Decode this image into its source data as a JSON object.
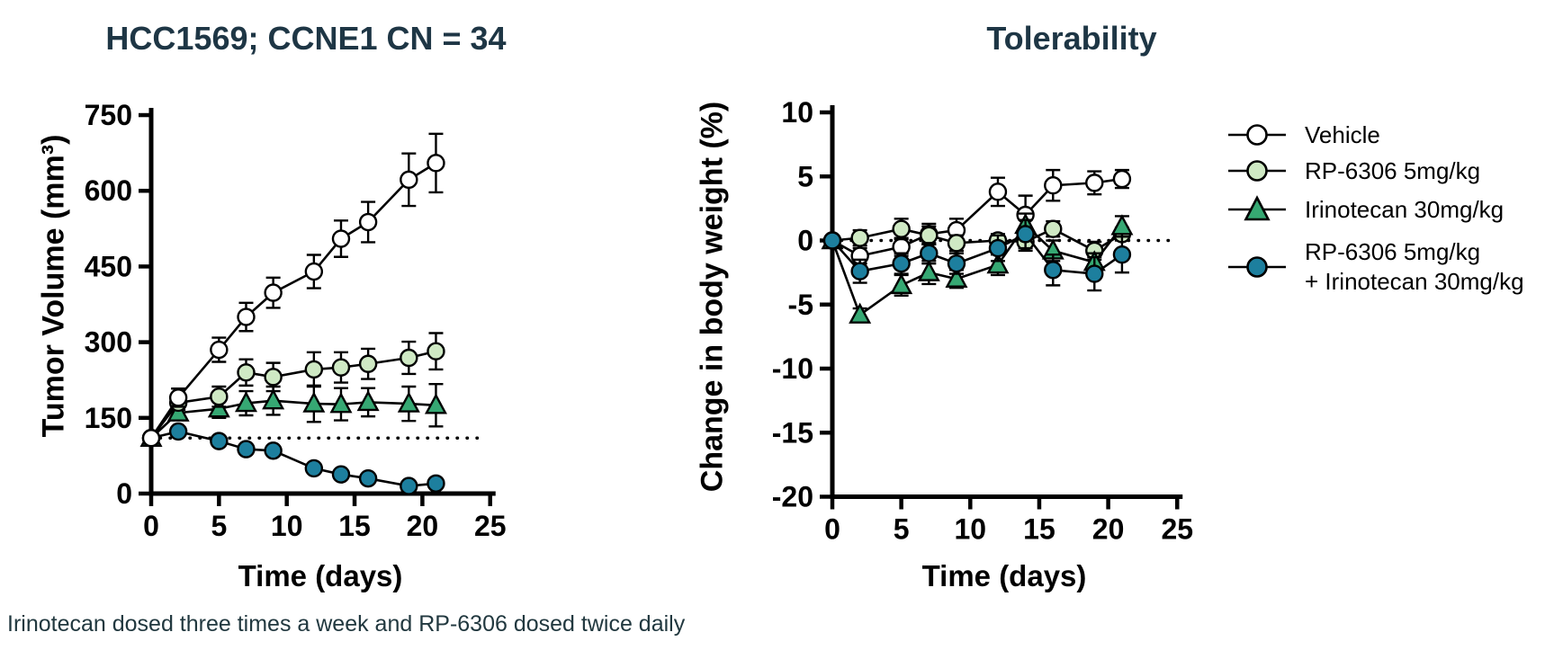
{
  "caption": "Irinotecan dosed three times a week and RP-6306 dosed twice daily",
  "colors": {
    "title_text": "#1e3645",
    "caption_text": "#21383f",
    "axis": "#000000",
    "vehicle_fill": "#ffffff",
    "rp6306_fill": "#cfe9c4",
    "irinotecan_fill": "#36a873",
    "combo_fill": "#1d7f9e"
  },
  "legend": {
    "items": [
      {
        "label": "Vehicle",
        "marker": "circle",
        "fill": "#ffffff"
      },
      {
        "label": "RP-6306 5mg/kg",
        "marker": "circle",
        "fill": "#cfe9c4"
      },
      {
        "label": "Irinotecan 30mg/kg",
        "marker": "triangle",
        "fill": "#36a873"
      },
      {
        "label": "RP-6306 5mg/kg\n+ Irinotecan 30mg/kg",
        "marker": "circle",
        "fill": "#1d7f9e"
      }
    ]
  },
  "chart_data": [
    {
      "type": "line",
      "title": "HCC1569; CCNE1 CN = 34",
      "xlabel": "Time (days)",
      "ylabel": "Tumor Volume (mm³)",
      "xlim": [
        0,
        25
      ],
      "ylim": [
        0,
        750
      ],
      "xticks": [
        0,
        5,
        10,
        15,
        20,
        25
      ],
      "yticks": [
        0,
        150,
        300,
        450,
        600,
        750
      ],
      "x": [
        0,
        2,
        5,
        7,
        9,
        12,
        14,
        16,
        19,
        21
      ],
      "baseline": {
        "value": 110,
        "style": "dotted",
        "x_start": 0,
        "x_end": 24.3
      },
      "series": [
        {
          "name": "Vehicle",
          "marker": "circle",
          "fill": "#ffffff",
          "values": [
            110,
            190,
            285,
            350,
            398,
            440,
            505,
            538,
            622,
            655
          ],
          "errors": [
            10,
            18,
            24,
            28,
            30,
            33,
            36,
            40,
            52,
            58
          ]
        },
        {
          "name": "RP-6306 5mg/kg",
          "marker": "circle",
          "fill": "#cfe9c4",
          "values": [
            110,
            180,
            192,
            240,
            231,
            246,
            250,
            257,
            269,
            282
          ],
          "errors": [
            8,
            14,
            20,
            26,
            28,
            34,
            30,
            30,
            32,
            36
          ]
        },
        {
          "name": "Irinotecan 30mg/kg",
          "marker": "triangle",
          "fill": "#36a873",
          "values": [
            110,
            160,
            168,
            179,
            184,
            178,
            177,
            181,
            178,
            175
          ],
          "errors": [
            8,
            12,
            18,
            24,
            28,
            36,
            32,
            28,
            34,
            42
          ]
        },
        {
          "name": "RP-6306 5mg/kg + Irinotecan 30mg/kg",
          "marker": "circle",
          "fill": "#1d7f9e",
          "values": [
            110,
            123,
            104,
            88,
            85,
            50,
            38,
            30,
            15,
            20
          ],
          "errors": [
            4,
            4,
            4,
            4,
            4,
            4,
            4,
            4,
            4,
            4
          ]
        }
      ]
    },
    {
      "type": "line",
      "title": "Tolerability",
      "xlabel": "Time (days)",
      "ylabel": "Change in body weight (%)",
      "xlim": [
        0,
        25
      ],
      "ylim": [
        -20,
        10
      ],
      "xticks": [
        0,
        5,
        10,
        15,
        20,
        25
      ],
      "yticks": [
        -20,
        -15,
        -10,
        -5,
        0,
        5,
        10
      ],
      "x": [
        0,
        2,
        5,
        7,
        9,
        12,
        14,
        16,
        19,
        21
      ],
      "baseline": {
        "value": 0,
        "style": "dotted",
        "x_start": 0,
        "x_end": 24.6
      },
      "series": [
        {
          "name": "Vehicle",
          "marker": "circle",
          "fill": "#ffffff",
          "values": [
            0,
            -1.2,
            -0.5,
            0.5,
            0.8,
            3.8,
            2.0,
            4.3,
            4.5,
            4.8
          ],
          "errors": [
            0.3,
            0.6,
            0.7,
            0.8,
            0.9,
            1.1,
            1.5,
            1.2,
            0.9,
            0.7
          ]
        },
        {
          "name": "RP-6306 5mg/kg",
          "marker": "circle",
          "fill": "#cfe9c4",
          "values": [
            0,
            0.2,
            0.9,
            0.4,
            -0.2,
            0.0,
            -0.1,
            0.9,
            -0.8,
            0.5
          ],
          "errors": [
            0.3,
            0.6,
            0.8,
            0.7,
            0.6,
            0.5,
            0.7,
            0.6,
            0.7,
            0.5
          ]
        },
        {
          "name": "Irinotecan 30mg/kg",
          "marker": "triangle",
          "fill": "#36a873",
          "values": [
            0,
            -5.8,
            -3.5,
            -2.5,
            -3.0,
            -1.9,
            1.2,
            -0.8,
            -1.7,
            1.1
          ],
          "errors": [
            0.3,
            0.5,
            0.8,
            0.9,
            0.7,
            0.8,
            0.9,
            0.8,
            0.7,
            0.8
          ]
        },
        {
          "name": "RP-6306 5mg/kg + Irinotecan 30mg/kg",
          "marker": "circle",
          "fill": "#1d7f9e",
          "values": [
            0,
            -2.4,
            -1.8,
            -1.0,
            -1.8,
            -0.6,
            0.5,
            -2.3,
            -2.6,
            -1.1
          ],
          "errors": [
            0.3,
            0.9,
            0.8,
            0.8,
            0.8,
            1.0,
            1.1,
            1.2,
            1.3,
            1.4
          ]
        }
      ]
    }
  ]
}
